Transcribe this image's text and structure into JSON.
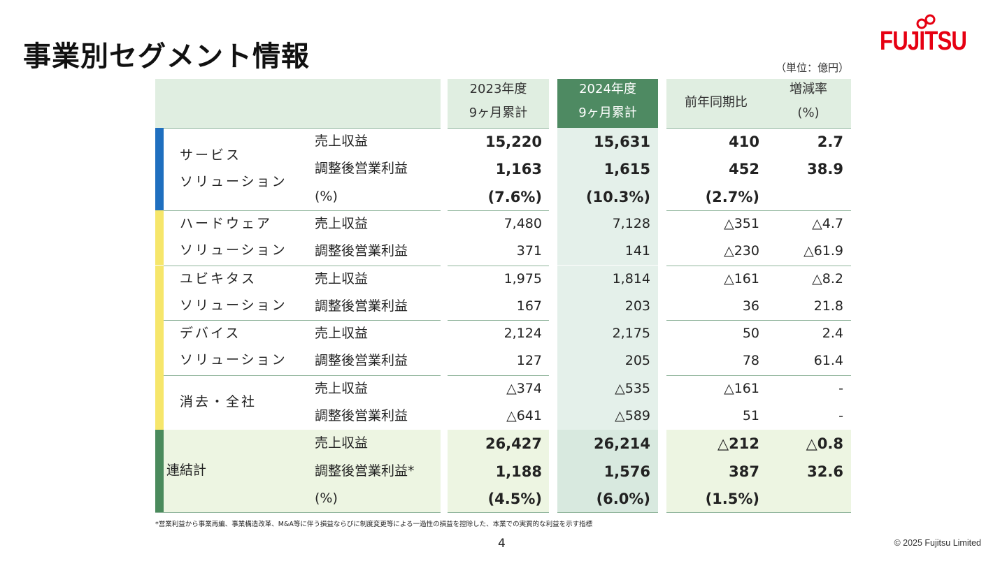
{
  "title": "事業別セグメント情報",
  "logo": "FUJITSU",
  "unit": "（単位：億円）",
  "table": {
    "columns": [
      [
        "2023年度",
        "9ヶ月累計"
      ],
      [
        "2024年度",
        "9ヶ月累計"
      ],
      [
        "前年同期比"
      ],
      [
        "増減率",
        "(%)"
      ]
    ],
    "groups": [
      {
        "name": [
          "サービス",
          "ソリューション"
        ],
        "color": "#1f6fbf",
        "bold": true,
        "rows": [
          {
            "label": "売上収益",
            "cells": [
              "15,220",
              "15,631",
              "410",
              "2.7"
            ]
          },
          {
            "label": "調整後営業利益",
            "cells": [
              "1,163",
              "1,615",
              "452",
              "38.9"
            ]
          },
          {
            "label": "(%)",
            "cells": [
              "(7.6%)",
              "(10.3%)",
              "(2.7%)",
              null
            ]
          }
        ]
      },
      {
        "name": [
          "ハードウェア",
          "ソリューション"
        ],
        "color": "#f6e66b",
        "rows": [
          {
            "label": "売上収益",
            "cells": [
              "7,480",
              "7,128",
              "△351",
              "△4.7"
            ]
          },
          {
            "label": "調整後営業利益",
            "cells": [
              "371",
              "141",
              "△230",
              "△61.9"
            ]
          }
        ]
      },
      {
        "name": [
          "ユビキタス",
          "ソリューション"
        ],
        "color": "#f6e66b",
        "rows": [
          {
            "label": "売上収益",
            "cells": [
              "1,975",
              "1,814",
              "△161",
              "△8.2"
            ]
          },
          {
            "label": "調整後営業利益",
            "cells": [
              "167",
              "203",
              "36",
              "21.8"
            ]
          }
        ]
      },
      {
        "name": [
          "デバイス",
          "ソリューション"
        ],
        "color": "#f6e66b",
        "rows": [
          {
            "label": "売上収益",
            "cells": [
              "2,124",
              "2,175",
              "50",
              "2.4"
            ]
          },
          {
            "label": "調整後営業利益",
            "cells": [
              "127",
              "205",
              "78",
              "61.4"
            ]
          }
        ]
      },
      {
        "name": [
          "消去・全社"
        ],
        "color": "#f6e66b",
        "rows": [
          {
            "label": "売上収益",
            "cells": [
              "△374",
              "△535",
              "△161",
              "-"
            ]
          },
          {
            "label": "調整後営業利益",
            "cells": [
              "△641",
              "△589",
              "51",
              "-"
            ]
          }
        ]
      },
      {
        "name": [
          "連結計"
        ],
        "color": "#4a8a5c",
        "bold": true,
        "highlight": true,
        "rows": [
          {
            "label": "売上収益",
            "cells": [
              "26,427",
              "26,214",
              "△212",
              "△0.8"
            ]
          },
          {
            "label": "調整後営業利益*",
            "cells": [
              "1,188",
              "1,576",
              "387",
              "32.6"
            ]
          },
          {
            "label": "(%)",
            "cells": [
              "(4.5%)",
              "(6.0%)",
              "(1.5%)",
              null
            ]
          }
        ]
      }
    ]
  },
  "footnote": "*営業利益から事業再編、事業構造改革、M&A等に伴う損益ならびに制度変更等による一過性の損益を控除した、本業での実質的な利益を示す指標",
  "page_number": "4",
  "copyright": "© 2025 Fujitsu Limited"
}
